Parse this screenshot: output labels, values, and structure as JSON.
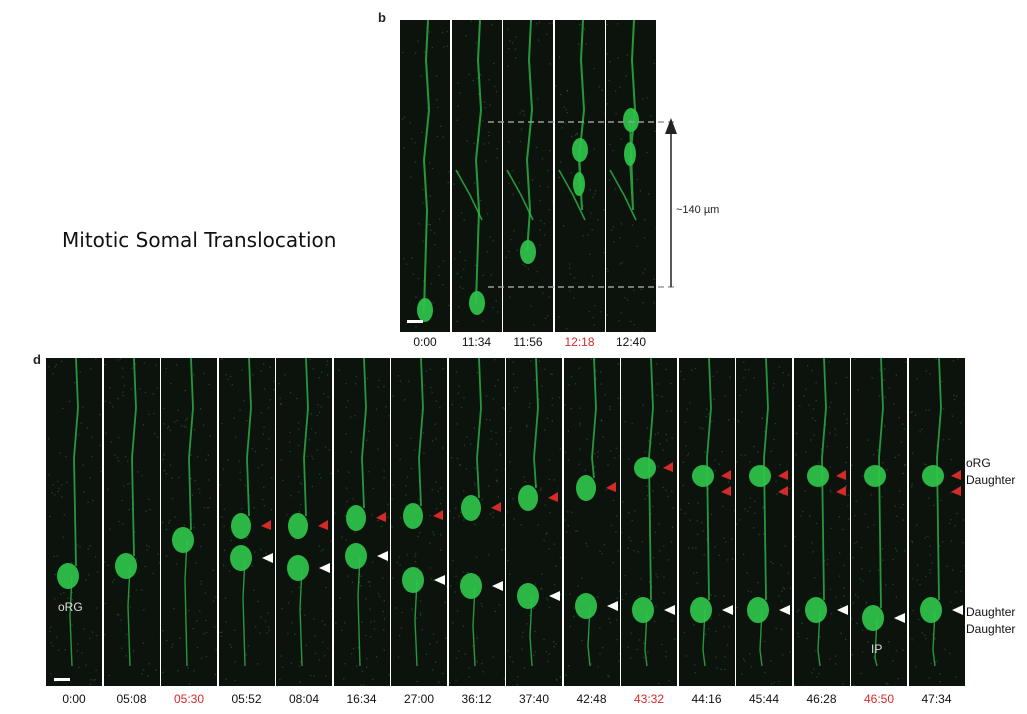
{
  "side_title": "Mitotic Somal Translocation",
  "panel_b": {
    "letter": "b",
    "measurement": "~140 µm",
    "frames": [
      {
        "time": "0:00",
        "highlight": false
      },
      {
        "time": "11:34",
        "highlight": false
      },
      {
        "time": "11:56",
        "highlight": false
      },
      {
        "time": "12:18",
        "highlight": true
      },
      {
        "time": "12:40",
        "highlight": false
      }
    ]
  },
  "panel_d": {
    "letter": "d",
    "frames": [
      {
        "time": "0:00",
        "highlight": false
      },
      {
        "time": "05:08",
        "highlight": false
      },
      {
        "time": "05:30",
        "highlight": true
      },
      {
        "time": "05:52",
        "highlight": false
      },
      {
        "time": "08:04",
        "highlight": false
      },
      {
        "time": "16:34",
        "highlight": false
      },
      {
        "time": "27:00",
        "highlight": false
      },
      {
        "time": "36:12",
        "highlight": false
      },
      {
        "time": "37:40",
        "highlight": false
      },
      {
        "time": "42:48",
        "highlight": false
      },
      {
        "time": "43:32",
        "highlight": true
      },
      {
        "time": "44:16",
        "highlight": false
      },
      {
        "time": "45:44",
        "highlight": false
      },
      {
        "time": "46:28",
        "highlight": false
      },
      {
        "time": "46:50",
        "highlight": true
      },
      {
        "time": "47:34",
        "highlight": false
      }
    ],
    "cell_labels": {
      "first": "oRG",
      "ip": "IP"
    },
    "right_labels": [
      "oRG",
      "Daughter",
      "Daughter",
      "Daughter"
    ]
  },
  "colors": {
    "cell_green": "#2fc44a",
    "highlight_red": "#d42a2a",
    "frame_bg": "#0c130d"
  }
}
